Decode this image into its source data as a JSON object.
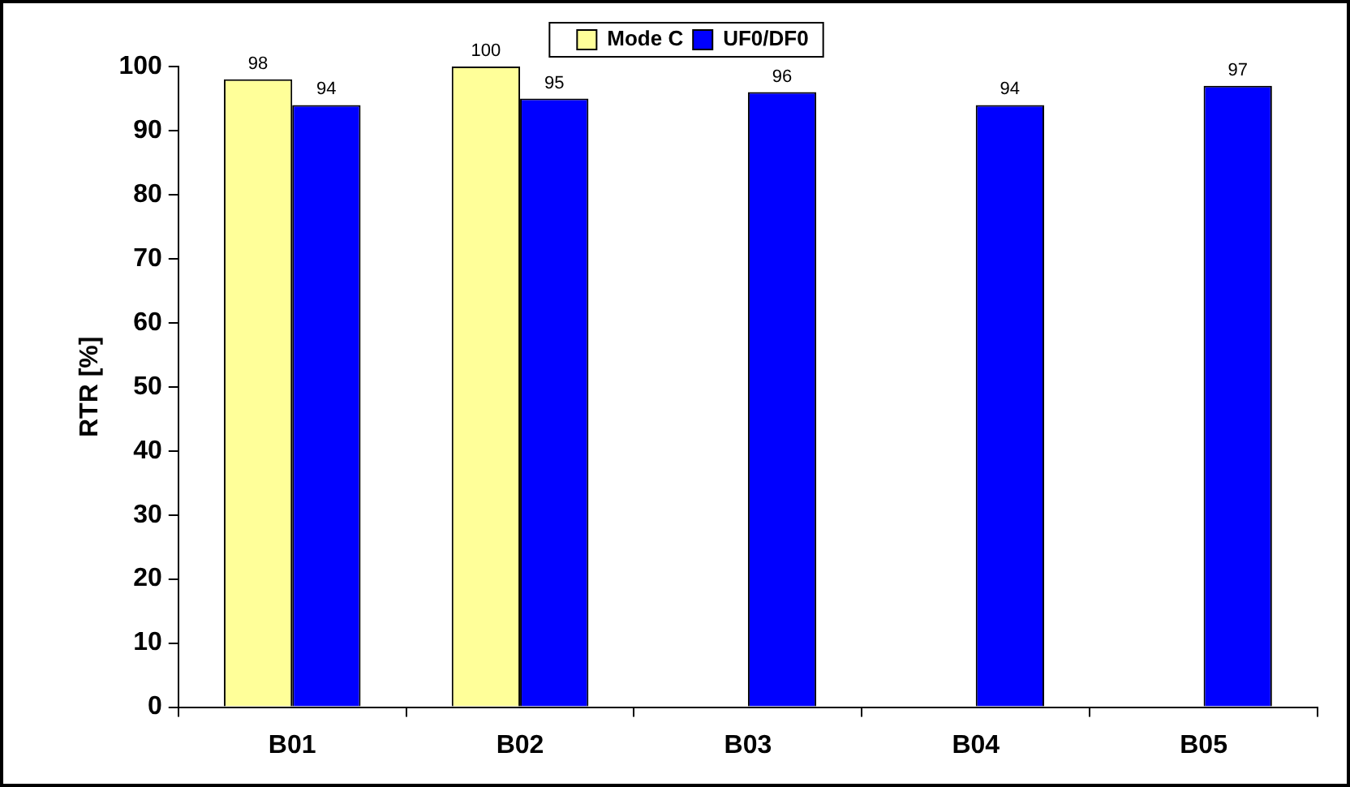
{
  "chart_data": {
    "type": "bar",
    "ylabel": "RTR [%]",
    "categories": [
      "B01",
      "B02",
      "B03",
      "B04",
      "B05"
    ],
    "series": [
      {
        "name": "Mode C",
        "color": "#ffff99",
        "values": [
          98,
          100,
          null,
          null,
          null
        ]
      },
      {
        "name": "UF0/DF0",
        "color": "#0000ff",
        "values": [
          94,
          95,
          96,
          94,
          97
        ]
      }
    ],
    "ylim": [
      0,
      100
    ],
    "yticks": [
      0,
      10,
      20,
      30,
      40,
      50,
      60,
      70,
      80,
      90,
      100
    ],
    "grid": false,
    "legend": "top",
    "data_labels": true
  }
}
